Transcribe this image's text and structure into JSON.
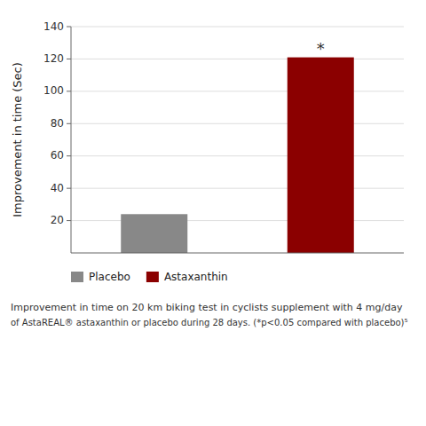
{
  "chart_data": {
    "type": "bar",
    "categories": [
      "Placebo",
      "Astaxanthin"
    ],
    "values": [
      24,
      121
    ],
    "colors": [
      "#888888",
      "#8B0000"
    ],
    "y_label": "Improvement in time (Sec)",
    "ylim": [
      0,
      140
    ],
    "yticks": [
      20,
      40,
      60,
      80,
      100,
      120,
      140
    ],
    "grid": true,
    "legend": "bottom",
    "tick_labels": "y",
    "annotations": [
      {
        "text": "*",
        "x": "Astaxanthin"
      }
    ],
    "caption": [
      "Improvement in time on 20 km biking test in cyclists supplement with 4 mg/day",
      "of AstaREAL® astaxanthin or placebo during 28 days. (*p<0.05 compared with placebo)⁵"
    ]
  }
}
